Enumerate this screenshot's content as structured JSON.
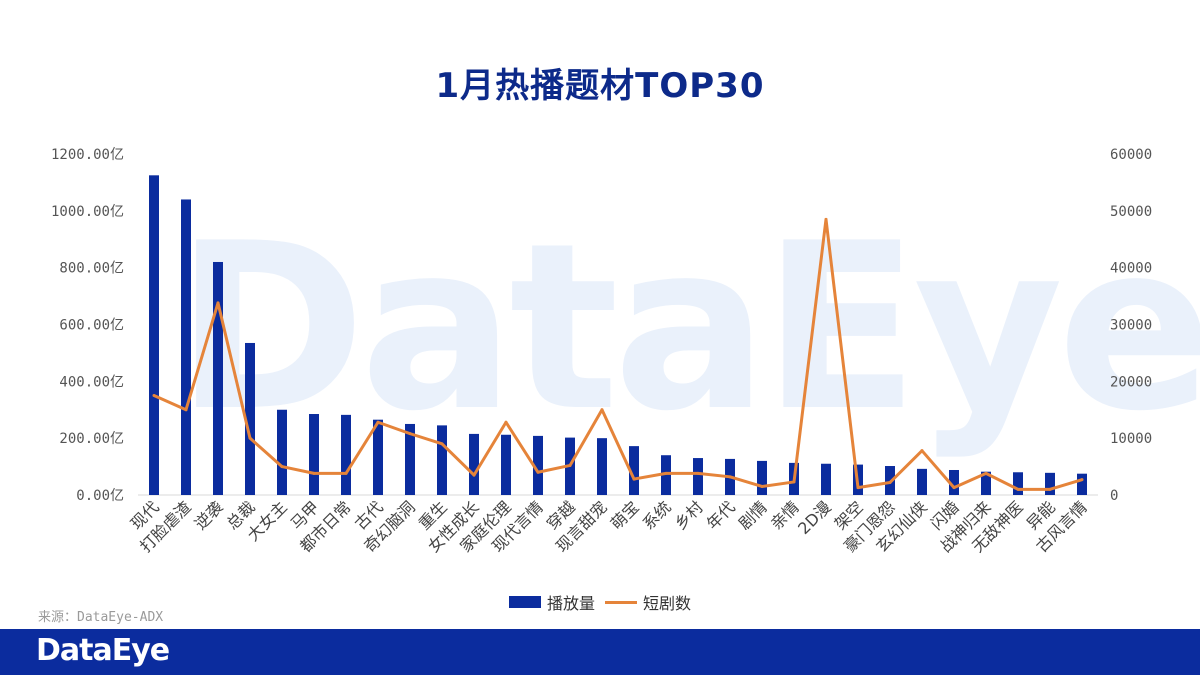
{
  "page": {
    "title": "1月热播题材TOP30",
    "watermark": "DataEye",
    "source": "来源：DataEye-ADX",
    "footer_logo": "DataEye"
  },
  "colors": {
    "bar": "#0b2c9e",
    "line": "#e5843a",
    "title": "#0d2a8a",
    "footer": "#0b2c9e"
  },
  "chart_data": {
    "type": "bar",
    "title": "1月热播题材TOP30",
    "categories": [
      "现代",
      "打脸虐渣",
      "逆袭",
      "总裁",
      "大女主",
      "马甲",
      "都市日常",
      "古代",
      "奇幻脑洞",
      "重生",
      "女性成长",
      "家庭伦理",
      "现代言情",
      "穿越",
      "现言甜宠",
      "萌宝",
      "系统",
      "乡村",
      "年代",
      "剧情",
      "亲情",
      "2D漫",
      "架空",
      "豪门恩怨",
      "玄幻仙侠",
      "闪婚",
      "战神归来",
      "无敌神医",
      "异能",
      "古风言情"
    ],
    "series": [
      {
        "name": "播放量",
        "type": "bar",
        "axis": "left",
        "values": [
          1125,
          1040,
          820,
          535,
          300,
          285,
          282,
          265,
          250,
          245,
          215,
          212,
          208,
          202,
          200,
          172,
          140,
          130,
          127,
          120,
          113,
          110,
          107,
          102,
          92,
          88,
          82,
          80,
          78,
          75
        ]
      },
      {
        "name": "短剧数",
        "type": "line",
        "axis": "right",
        "values": [
          17500,
          15000,
          33800,
          10000,
          5000,
          3800,
          3800,
          12800,
          10800,
          9000,
          3500,
          12800,
          4000,
          5200,
          15000,
          2800,
          3800,
          3800,
          3200,
          1500,
          2300,
          48500,
          1300,
          2200,
          7800,
          1300,
          3800,
          1000,
          1000,
          2700
        ]
      }
    ],
    "y_left": {
      "min": 0,
      "max": 1200,
      "ticks": [
        "0.00亿",
        "200.00亿",
        "400.00亿",
        "600.00亿",
        "800.00亿",
        "1000.00亿",
        "1200.00亿"
      ]
    },
    "y_right": {
      "min": 0,
      "max": 60000,
      "ticks": [
        "0",
        "10000",
        "20000",
        "30000",
        "40000",
        "50000",
        "60000"
      ]
    },
    "legend": {
      "position": "bottom",
      "items": [
        "播放量",
        "短剧数"
      ]
    },
    "grid": false
  }
}
